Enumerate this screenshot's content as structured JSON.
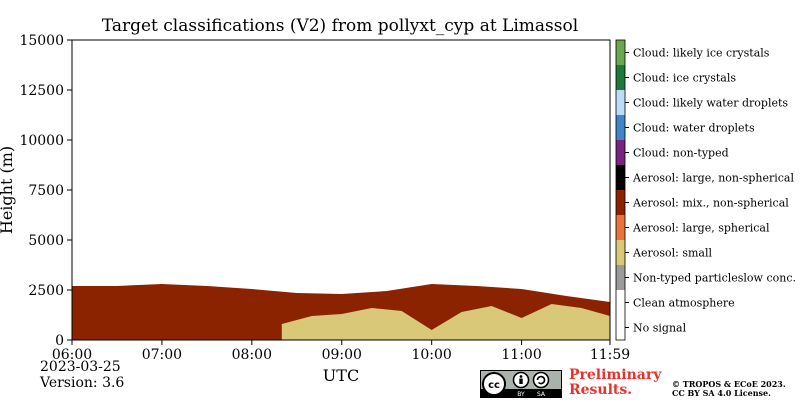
{
  "title": "Target classifications (V2) from pollyxt_cyp at Limassol",
  "date": "2023-03-25",
  "version": "Version: 3.6",
  "preliminary": [
    "Preliminary",
    "Results."
  ],
  "copyright": [
    "© TROPOS & ECoE 2023.",
    "CC BY SA 4.0 License."
  ],
  "license_badge": {
    "text": [
      "BY",
      "SA"
    ]
  },
  "chart_data": {
    "type": "heatmap",
    "title": "Target classifications (V2) from pollyxt_cyp at Limassol",
    "xlabel": "UTC",
    "ylabel": "Height (m)",
    "xlim": [
      "06:00",
      "11:59"
    ],
    "ylim": [
      0,
      15000
    ],
    "x_ticks": [
      "06:00",
      "07:00",
      "08:00",
      "09:00",
      "10:00",
      "11:00",
      "11:59"
    ],
    "y_ticks": [
      0,
      2500,
      5000,
      7500,
      10000,
      12500,
      15000
    ],
    "y_tick_labels": [
      "0",
      "2500",
      "5000",
      "7500",
      "10000",
      "12500",
      "15000"
    ],
    "legend_position": "right",
    "classes": [
      {
        "label": "Cloud: likely ice crystals",
        "color": "#6aa84f"
      },
      {
        "label": "Cloud: ice crystals",
        "color": "#1e7a3a"
      },
      {
        "label": "Cloud: likely water droplets",
        "color": "#bcdcf7"
      },
      {
        "label": "Cloud: water droplets",
        "color": "#3f86c8"
      },
      {
        "label": "Cloud: non-typed",
        "color": "#7a2382"
      },
      {
        "label": "Aerosol: large, non-spherical",
        "color": "#000000"
      },
      {
        "label": "Aerosol: mix., non-spherical",
        "color": "#8b2300"
      },
      {
        "label": "Aerosol: large, spherical",
        "color": "#e8743b"
      },
      {
        "label": "Aerosol: small",
        "color": "#d9c878"
      },
      {
        "label": "Non-typed particleslow conc.",
        "color": "#9b9b9b"
      },
      {
        "label": "Clean atmosphere",
        "color": "#ffffff"
      },
      {
        "label": "No signal",
        "color": "#ffffff"
      }
    ],
    "layers": [
      {
        "class": "Aerosol: mix., non-spherical",
        "x": [
          "06:00",
          "06:30",
          "07:00",
          "07:30",
          "08:00",
          "08:30",
          "09:00",
          "09:30",
          "10:00",
          "10:30",
          "11:00",
          "11:30",
          "11:59"
        ],
        "top_m": [
          2700,
          2700,
          2800,
          2700,
          2550,
          2350,
          2300,
          2450,
          2800,
          2700,
          2550,
          2200,
          1900
        ]
      },
      {
        "class": "Aerosol: small",
        "x": [
          "08:20",
          "08:40",
          "09:00",
          "09:20",
          "09:40",
          "10:00",
          "10:20",
          "10:40",
          "11:00",
          "11:20",
          "11:40",
          "11:59"
        ],
        "top_m": [
          800,
          1200,
          1300,
          1600,
          1450,
          500,
          1400,
          1700,
          1100,
          1800,
          1600,
          1200
        ]
      }
    ]
  }
}
